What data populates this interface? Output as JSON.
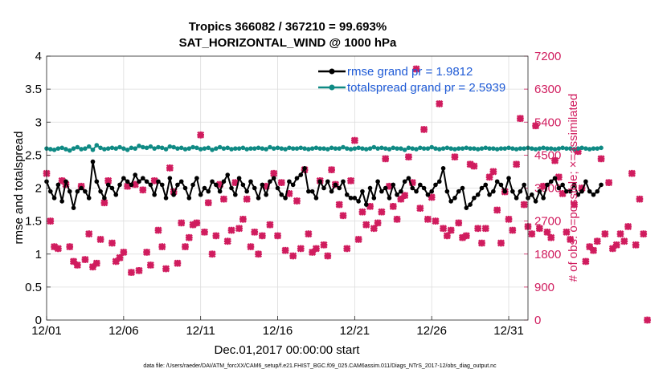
{
  "chart_data": {
    "type": "line",
    "title_line1": "Tropics 366082 / 367210 = 99.693%",
    "title_line2": "SAT_HORIZONTAL_WIND @ 1000 hPa",
    "xlabel": "Dec.01,2017 00:00:00 start",
    "ylabel_left": "rmse and totalspread",
    "ylabel_right": "# of obs: o=possible; ×=assimilated",
    "footnote": "data file: /Users/raeder/DAI/ATM_forcXX/CAM6_setup/f.e21.FHIST_BGC.f09_025.CAM6assim.011/Diags_NTrS_2017-12/obs_diag_output.nc",
    "xlim": [
      1,
      32.25
    ],
    "ylim_left": [
      0,
      4
    ],
    "ylim_right": [
      0,
      7200
    ],
    "x_ticks": [
      1,
      6,
      11,
      16,
      21,
      26,
      31
    ],
    "x_tick_labels": [
      "12/01",
      "12/06",
      "12/11",
      "12/16",
      "12/21",
      "12/26",
      "12/31"
    ],
    "y_ticks_left": [
      0,
      0.5,
      1,
      1.5,
      2,
      2.5,
      3,
      3.5,
      4
    ],
    "y_tick_labels_left": [
      "0",
      "0.5",
      "1",
      "1.5",
      "2",
      "2.5",
      "3",
      "3.5",
      "4"
    ],
    "y_ticks_right": [
      0,
      900,
      1800,
      2700,
      3600,
      4500,
      5400,
      6300,
      7200
    ],
    "y_tick_labels_right": [
      "0",
      "900",
      "1800",
      "2700",
      "3600",
      "4500",
      "5400",
      "6300",
      "7200"
    ],
    "x_start": 1.0,
    "x_step": 0.25,
    "series": [
      {
        "name": "rmse grand pr = 1.9812",
        "color": "#000000",
        "marker": "circle",
        "values": [
          2.1,
          1.95,
          1.85,
          2.05,
          1.8,
          2.1,
          1.95,
          1.7,
          1.95,
          2.0,
          1.95,
          1.85,
          2.4,
          2.1,
          1.95,
          1.85,
          2.05,
          2.0,
          1.9,
          2.05,
          2.15,
          2.1,
          2.05,
          2.2,
          2.1,
          2.15,
          2.1,
          2.05,
          1.9,
          2.1,
          2.05,
          1.85,
          2.15,
          1.9,
          2.05,
          2.1,
          2.0,
          1.85,
          2.05,
          2.15,
          1.9,
          2.0,
          1.95,
          2.1,
          2.05,
          1.95,
          2.1,
          2.2,
          2.0,
          1.9,
          2.15,
          2.05,
          1.95,
          2.1,
          2.0,
          1.85,
          2.05,
          1.9,
          2.1,
          2.15,
          2.0,
          1.9,
          1.85,
          2.1,
          2.05,
          2.15,
          2.2,
          2.3,
          1.95,
          1.95,
          1.85,
          2.1,
          2.0,
          2.1,
          1.95,
          2.05,
          2.0,
          2.1,
          1.9,
          1.85,
          1.85,
          1.8,
          1.95,
          1.75,
          2.0,
          1.85,
          2.1,
          1.95,
          2.0,
          1.85,
          2.05,
          1.9,
          1.95,
          2.1,
          2.15,
          2.0,
          1.95,
          2.05,
          2.0,
          1.9,
          1.95,
          2.05,
          2.1,
          2.3,
          1.95,
          1.8,
          1.85,
          1.95,
          2.0,
          1.7,
          1.75,
          1.85,
          1.9,
          2.0,
          2.05,
          1.9,
          1.95,
          2.1,
          2.05,
          1.95,
          2.15,
          1.95,
          1.85,
          1.95,
          2.05,
          1.85,
          1.9,
          1.8,
          1.95,
          1.85,
          2.05,
          2.1,
          2.15,
          2.0,
          2.05,
          1.95,
          1.95,
          2.05,
          1.9,
          1.95,
          2.1,
          1.95,
          1.9,
          1.95,
          2.05
        ]
      },
      {
        "name": "totalspread grand pr = 2.5939",
        "color": "#0f8a84",
        "marker": "circle",
        "values": [
          2.6,
          2.59,
          2.58,
          2.6,
          2.61,
          2.59,
          2.57,
          2.6,
          2.62,
          2.59,
          2.6,
          2.63,
          2.58,
          2.65,
          2.61,
          2.59,
          2.6,
          2.61,
          2.6,
          2.62,
          2.6,
          2.58,
          2.61,
          2.6,
          2.64,
          2.62,
          2.61,
          2.63,
          2.6,
          2.62,
          2.61,
          2.59,
          2.63,
          2.62,
          2.6,
          2.61,
          2.59,
          2.6,
          2.62,
          2.61,
          2.59,
          2.6,
          2.61,
          2.58,
          2.6,
          2.62,
          2.6,
          2.61,
          2.59,
          2.6,
          2.6,
          2.61,
          2.59,
          2.6,
          2.6,
          2.61,
          2.6,
          2.59,
          2.62,
          2.6,
          2.61,
          2.6,
          2.59,
          2.61,
          2.6,
          2.6,
          2.61,
          2.6,
          2.59,
          2.6,
          2.61,
          2.6,
          2.6,
          2.59,
          2.61,
          2.6,
          2.6,
          2.62,
          2.6,
          2.59,
          2.6,
          2.61,
          2.6,
          2.59,
          2.6,
          2.62,
          2.6,
          2.61,
          2.6,
          2.59,
          2.61,
          2.6,
          2.6,
          2.58,
          2.61,
          2.6,
          2.59,
          2.61,
          2.6,
          2.6,
          2.62,
          2.6,
          2.59,
          2.6,
          2.61,
          2.6,
          2.59,
          2.6,
          2.6,
          2.61,
          2.6,
          2.6,
          2.59,
          2.6,
          2.61,
          2.6,
          2.6,
          2.59,
          2.6,
          2.6,
          2.61,
          2.6,
          2.59,
          2.6,
          2.6,
          2.61,
          2.6,
          2.59,
          2.6,
          2.61,
          2.6,
          2.6,
          2.59,
          2.6,
          2.61,
          2.6,
          2.6,
          2.59,
          2.6,
          2.61,
          2.6,
          2.59,
          2.6,
          2.6,
          2.61
        ]
      },
      {
        "name": "# obs assimilated",
        "color": "#d01c5e",
        "marker": "x",
        "axis": "right",
        "values": [
          4000,
          2700,
          2000,
          1950,
          3800,
          3700,
          2000,
          1600,
          1500,
          3650,
          1650,
          2350,
          1450,
          1550,
          2200,
          3200,
          3800,
          2100,
          1600,
          1700,
          1850,
          3650,
          1300,
          3700,
          1350,
          3550,
          1850,
          1500,
          3800,
          2450,
          2000,
          1400,
          4150,
          3500,
          1550,
          2650,
          2000,
          2250,
          2600,
          2650,
          5050,
          2400,
          3200,
          1800,
          2300,
          3700,
          3300,
          2150,
          2450,
          3750,
          2500,
          2750,
          3300,
          2000,
          2400,
          1800,
          2300,
          3650,
          2600,
          4000,
          2300,
          3750,
          1900,
          3450,
          1750,
          3250,
          1950,
          4100,
          2350,
          1850,
          1950,
          3800,
          2050,
          1750,
          4100,
          3700,
          3150,
          2850,
          1950,
          3800,
          4900,
          2200,
          2950,
          2600,
          3100,
          2500,
          2650,
          2950,
          4400,
          3650,
          3100,
          2750,
          3300,
          3400,
          4450,
          3750,
          6850,
          3050,
          5200,
          2750,
          3350,
          2700,
          5900,
          2500,
          2300,
          2450,
          4450,
          2650,
          2250,
          2300,
          4250,
          4200,
          2500,
          2100,
          2500,
          3900,
          4050,
          3000,
          2100,
          3500,
          2750,
          2450,
          4250,
          5500,
          3150,
          2550,
          2350,
          5300,
          2500,
          3650,
          2400,
          2250,
          4350,
          3900,
          3450,
          2400,
          2200,
          3150,
          4600,
          3600,
          1600,
          2000,
          1900,
          2150,
          4400,
          2350,
          3750,
          1950,
          2050,
          2350,
          2150,
          2550,
          4000,
          2050,
          3300,
          2350,
          0
        ]
      }
    ],
    "legend": [
      "rmse grand pr = 1.9812",
      "totalspread grand pr = 2.5939"
    ]
  }
}
